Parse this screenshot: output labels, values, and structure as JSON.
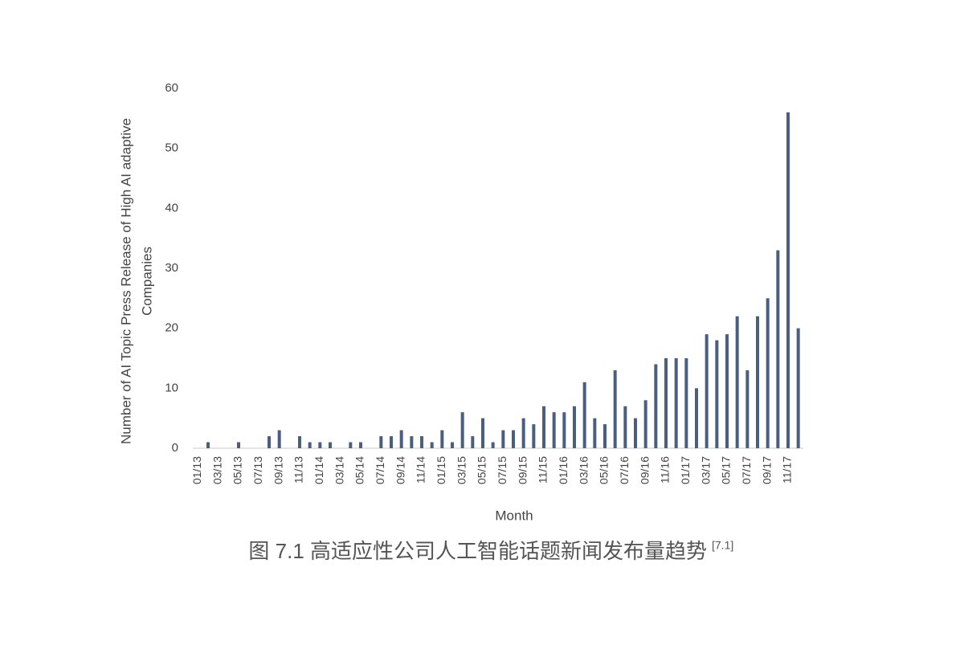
{
  "chart_data": {
    "type": "bar",
    "ylabel_lines": [
      "Number of AI Topic Press Release of High AI adaptive",
      "Companies"
    ],
    "xlabel": "Month",
    "categories": [
      "01/13",
      null,
      "03/13",
      null,
      "05/13",
      null,
      "07/13",
      null,
      "09/13",
      null,
      "11/13",
      null,
      "01/14",
      null,
      "03/14",
      null,
      "05/14",
      null,
      "07/14",
      null,
      "09/14",
      null,
      "11/14",
      null,
      "01/15",
      null,
      "03/15",
      null,
      "05/15",
      null,
      "07/15",
      null,
      "09/15",
      null,
      "11/15",
      null,
      "01/16",
      null,
      "03/16",
      null,
      "05/16",
      null,
      "07/16",
      null,
      "09/16",
      null,
      "11/16",
      null,
      "01/17",
      null,
      "03/17",
      null,
      "05/17",
      null,
      "07/17",
      null,
      "09/17",
      null,
      "11/17",
      null
    ],
    "values": [
      0,
      1,
      0,
      0,
      1,
      0,
      0,
      2,
      3,
      0,
      2,
      1,
      1,
      1,
      0,
      1,
      1,
      0,
      2,
      2,
      3,
      2,
      2,
      1,
      3,
      1,
      6,
      2,
      5,
      1,
      3,
      3,
      5,
      4,
      7,
      6,
      6,
      7,
      11,
      5,
      4,
      13,
      7,
      5,
      8,
      14,
      15,
      15,
      15,
      10,
      19,
      18,
      19,
      22,
      13,
      22,
      25,
      33,
      56,
      20
    ],
    "color": "#4a5f80",
    "ylim": [
      0,
      60
    ],
    "yticks": [
      0,
      10,
      20,
      30,
      40,
      50,
      60
    ],
    "grid": false
  },
  "caption": {
    "text": "图 7.1 高适应性公司人工智能话题新闻发布量趋势",
    "ref": "[7.1]"
  }
}
